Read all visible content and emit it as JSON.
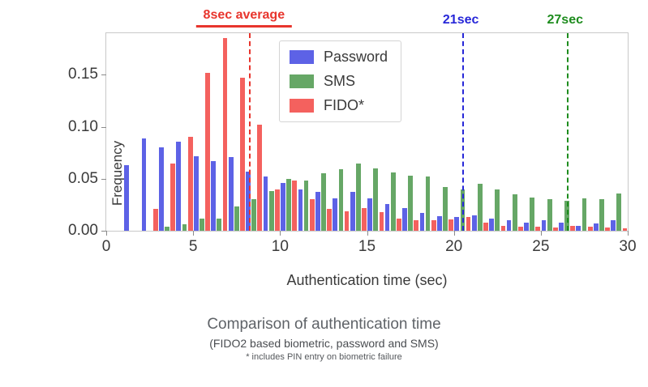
{
  "chart_data": {
    "type": "bar",
    "subtype": "grouped-histogram",
    "title": "Comparison of authentication time",
    "xlabel": "Authentication time (sec)",
    "ylabel": "Frequency",
    "xlim": [
      0,
      30
    ],
    "ylim": [
      0,
      0.19
    ],
    "grid": false,
    "legend_position": "upper-center-left",
    "xticks": [
      0,
      5,
      10,
      15,
      20,
      25,
      30
    ],
    "yticks": [
      {
        "v": 0.0,
        "label": "0.00"
      },
      {
        "v": 0.05,
        "label": "0.05"
      },
      {
        "v": 0.1,
        "label": "0.10"
      },
      {
        "v": 0.15,
        "label": "0.15"
      }
    ],
    "bins": [
      1,
      2,
      3,
      4,
      5,
      6,
      7,
      8,
      9,
      10,
      11,
      12,
      13,
      14,
      15,
      16,
      17,
      18,
      19,
      20,
      21,
      22,
      23,
      24,
      25,
      26,
      27,
      28,
      29
    ],
    "series": [
      {
        "name": "Password",
        "color": "#5d62e6",
        "values": [
          0.063,
          0.089,
          0.08,
          0.086,
          0.072,
          0.067,
          0.071,
          0.057,
          0.052,
          0.046,
          0.04,
          0.037,
          0.031,
          0.037,
          0.031,
          0.026,
          0.022,
          0.017,
          0.014,
          0.013,
          0.015,
          0.012,
          0.01,
          0.008,
          0.01,
          0.008,
          0.005,
          0.007,
          0.01
        ]
      },
      {
        "name": "SMS",
        "color": "#66a766",
        "values": [
          0,
          0,
          0.004,
          0.006,
          0.012,
          0.012,
          0.023,
          0.03,
          0.038,
          0.05,
          0.048,
          0.055,
          0.059,
          0.065,
          0.06,
          0.056,
          0.053,
          0.052,
          0.042,
          0.04,
          0.045,
          0.04,
          0.035,
          0.032,
          0.03,
          0.029,
          0.031,
          0.03,
          0.036
        ]
      },
      {
        "name": "FIDO*",
        "color": "#f4615e",
        "values": [
          0,
          0.021,
          0.065,
          0.09,
          0.152,
          0.185,
          0.147,
          0.102,
          0.04,
          0.048,
          0.03,
          0.021,
          0.019,
          0.022,
          0.018,
          0.012,
          0.01,
          0.01,
          0.011,
          0.013,
          0.008,
          0.005,
          0.004,
          0.004,
          0.003,
          0.005,
          0.004,
          0.003,
          0.002
        ]
      }
    ],
    "vlines": [
      {
        "x": 8.2,
        "color": "#e8352d",
        "label": "8sec average",
        "label_underline": true
      },
      {
        "x": 20.5,
        "color": "#2727d8",
        "label": "21sec",
        "label_underline": false
      },
      {
        "x": 26.5,
        "color": "#1e8c1e",
        "label": "27sec",
        "label_underline": false
      }
    ]
  },
  "caption": {
    "title": "Comparison of authentication time",
    "subtitle": "(FIDO2 based biometric, password and SMS)",
    "footnote": "* includes PIN entry on biometric failure"
  }
}
